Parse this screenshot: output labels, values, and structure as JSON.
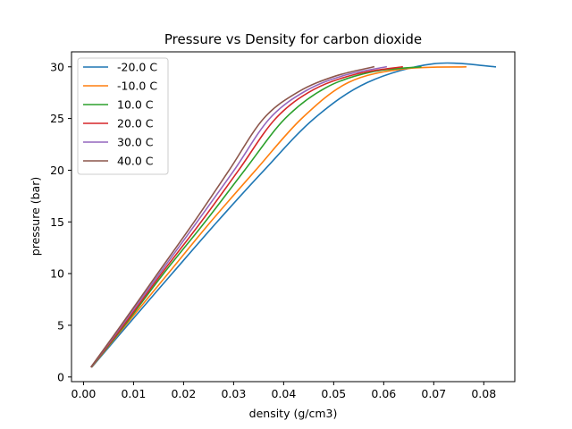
{
  "chart_data": {
    "type": "line",
    "title": "Pressure vs Density for carbon dioxide",
    "xlabel": "density (g/cm3)",
    "ylabel": "pressure (bar)",
    "xlim": [
      -0.0024,
      0.0862
    ],
    "ylim": [
      -0.45,
      31.45
    ],
    "xticks": [
      0.0,
      0.01,
      0.02,
      0.03,
      0.04,
      0.05,
      0.06,
      0.07,
      0.08
    ],
    "xtick_labels": [
      "0.00",
      "0.01",
      "0.02",
      "0.03",
      "0.04",
      "0.05",
      "0.06",
      "0.07",
      "0.08"
    ],
    "yticks": [
      0,
      5,
      10,
      15,
      20,
      25,
      30
    ],
    "ytick_labels": [
      "0",
      "5",
      "10",
      "15",
      "20",
      "25",
      "30"
    ],
    "grid": false,
    "legend_position": "top-left",
    "series": [
      {
        "name": "-20.0 C",
        "color": "#1f77b4",
        "points": [
          [
            0.00175,
            1
          ],
          [
            0.00879,
            5
          ],
          [
            0.0177,
            10
          ],
          [
            0.0267,
            15
          ],
          [
            0.0361,
            20
          ],
          [
            0.0461,
            25
          ],
          [
            0.0568,
            28.5
          ],
          [
            0.07,
            30.3
          ],
          [
            0.0823,
            30
          ]
        ]
      },
      {
        "name": "-10.0 C",
        "color": "#ff7f0e",
        "points": [
          [
            0.00168,
            1
          ],
          [
            0.0084,
            5
          ],
          [
            0.0169,
            10
          ],
          [
            0.0254,
            15
          ],
          [
            0.0344,
            20
          ],
          [
            0.0436,
            25
          ],
          [
            0.053,
            28.5
          ],
          [
            0.064,
            29.8
          ],
          [
            0.0764,
            30
          ]
        ]
      },
      {
        "name": "10.0 C",
        "color": "#2ca02c",
        "points": [
          [
            0.00163,
            1
          ],
          [
            0.0082,
            5
          ],
          [
            0.016,
            10
          ],
          [
            0.0243,
            15
          ],
          [
            0.0322,
            20
          ],
          [
            0.0403,
            25
          ],
          [
            0.0485,
            28
          ],
          [
            0.0575,
            29.5
          ],
          [
            0.0674,
            30
          ]
        ]
      },
      {
        "name": "20.0 C",
        "color": "#d62728",
        "points": [
          [
            0.0016,
            1
          ],
          [
            0.008,
            5
          ],
          [
            0.0156,
            10
          ],
          [
            0.0235,
            15
          ],
          [
            0.031,
            20
          ],
          [
            0.0384,
            25
          ],
          [
            0.046,
            27.8
          ],
          [
            0.0545,
            29.3
          ],
          [
            0.0637,
            30
          ]
        ]
      },
      {
        "name": "30.0 C",
        "color": "#9467bd",
        "points": [
          [
            0.00157,
            1
          ],
          [
            0.0077,
            5
          ],
          [
            0.0152,
            10
          ],
          [
            0.0227,
            15
          ],
          [
            0.0301,
            20
          ],
          [
            0.0372,
            25
          ],
          [
            0.0445,
            27.7
          ],
          [
            0.0523,
            29.2
          ],
          [
            0.0605,
            30
          ]
        ]
      },
      {
        "name": "40.0 C",
        "color": "#8c564b",
        "points": [
          [
            0.00155,
            1
          ],
          [
            0.0075,
            5
          ],
          [
            0.0148,
            10
          ],
          [
            0.0221,
            15
          ],
          [
            0.0291,
            20
          ],
          [
            0.036,
            25
          ],
          [
            0.043,
            27.6
          ],
          [
            0.0503,
            29.1
          ],
          [
            0.058,
            30
          ]
        ]
      }
    ]
  }
}
